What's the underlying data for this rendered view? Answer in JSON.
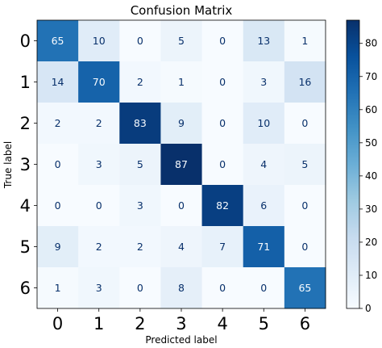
{
  "chart_data": {
    "type": "heatmap",
    "title": "Confusion Matrix",
    "xlabel": "Predicted label",
    "ylabel": "True label",
    "x_categories": [
      "0",
      "1",
      "2",
      "3",
      "4",
      "5",
      "6"
    ],
    "y_categories": [
      "0",
      "1",
      "2",
      "3",
      "4",
      "5",
      "6"
    ],
    "values": [
      [
        65,
        10,
        0,
        5,
        0,
        13,
        1
      ],
      [
        14,
        70,
        2,
        1,
        0,
        3,
        16
      ],
      [
        2,
        2,
        83,
        9,
        0,
        10,
        0
      ],
      [
        0,
        3,
        5,
        87,
        0,
        4,
        5
      ],
      [
        0,
        0,
        3,
        0,
        82,
        6,
        0
      ],
      [
        9,
        2,
        2,
        4,
        7,
        71,
        0
      ],
      [
        1,
        3,
        0,
        8,
        0,
        0,
        65
      ]
    ],
    "colormap": "Blues",
    "colorbar_range": [
      0,
      87
    ],
    "colorbar_ticks": [
      "0",
      "10",
      "20",
      "30",
      "40",
      "50",
      "60",
      "70",
      "80"
    ]
  }
}
